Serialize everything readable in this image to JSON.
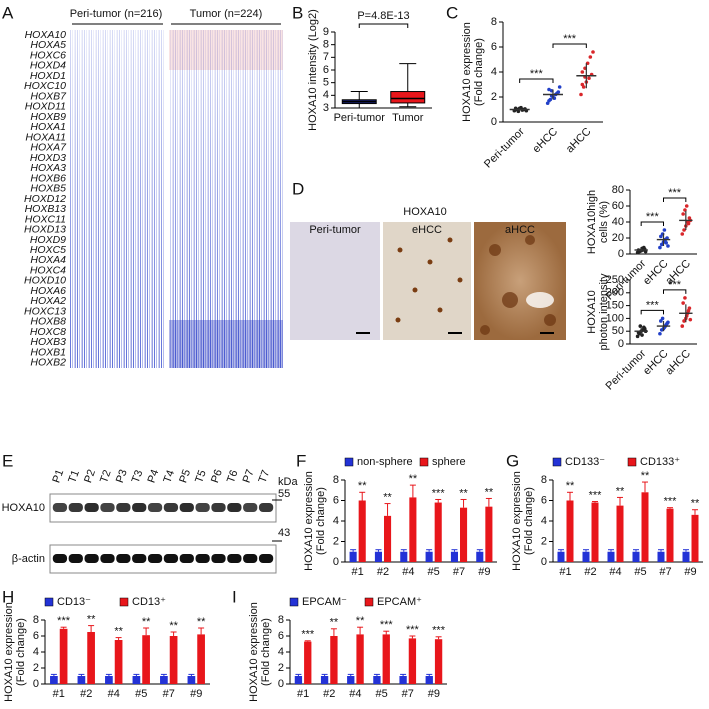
{
  "panel_labels": [
    "A",
    "B",
    "C",
    "D",
    "E",
    "F",
    "G",
    "H",
    "I"
  ],
  "heatmap": {
    "groups": [
      "Peri-tumor (n=216)",
      "Tumor (n=224)"
    ],
    "genes": [
      "HOXA10",
      "HOXA5",
      "HOXC6",
      "HOXD4",
      "HOXD1",
      "HOXC10",
      "HOXB7",
      "HOXD11",
      "HOXB9",
      "HOXA1",
      "HOXA11",
      "HOXA7",
      "HOXD3",
      "HOXA3",
      "HOXB6",
      "HOXB5",
      "HOXD12",
      "HOXB13",
      "HOXC11",
      "HOXD13",
      "HOXD9",
      "HOXC5",
      "HOXA4",
      "HOXC4",
      "HOXD10",
      "HOXA6",
      "HOXA2",
      "HOXC13",
      "HOXB8",
      "HOXC8",
      "HOXB3",
      "HOXB1",
      "HOXB2"
    ]
  },
  "ihc": {
    "title": "HOXA10",
    "panels": [
      "Peri-tumor",
      "eHCC",
      "aHCC"
    ]
  },
  "blot": {
    "lanes": [
      "P1",
      "T1",
      "P2",
      "T2",
      "P3",
      "T3",
      "P4",
      "T4",
      "P5",
      "T5",
      "P6",
      "T6",
      "P7",
      "T7"
    ],
    "unit": "kDa",
    "markers": [
      "55",
      "43"
    ],
    "rows": [
      "HOXA10",
      "β-actin"
    ]
  },
  "chart_data": [
    {
      "type": "box",
      "ylabel": [
        "HOXA10 intensity (Log2)"
      ],
      "annotation": "P=4.8E-13",
      "categories": [
        "Peri-tumor",
        "Tumor"
      ],
      "colors": [
        "#1a237e",
        "#e8161b"
      ],
      "boxes": [
        {
          "min": 3.0,
          "q1": 3.35,
          "median": 3.5,
          "q3": 3.65,
          "max": 4.3
        },
        {
          "min": 3.1,
          "q1": 3.4,
          "median": 3.75,
          "q3": 4.3,
          "max": 6.5
        }
      ],
      "ylim": [
        3,
        9
      ],
      "yticks": [
        3,
        4,
        5,
        6,
        7,
        8,
        9
      ]
    },
    {
      "type": "dot",
      "ylabel": [
        "HOXA10 expression",
        "(Fold change)"
      ],
      "categories": [
        "Peri-tumor",
        "eHCC",
        "aHCC"
      ],
      "colors": [
        "#222222",
        "#2240c8",
        "#d9262a"
      ],
      "points": [
        [
          0.9,
          1.0,
          1.1,
          0.95,
          1.05,
          1.0,
          0.85,
          1.15,
          1.0,
          0.9,
          1.1,
          1.0
        ],
        [
          1.5,
          1.8,
          2.0,
          2.2,
          2.4,
          2.6,
          2.1,
          1.9,
          2.3,
          2.8,
          1.7,
          2.5
        ],
        [
          2.2,
          2.8,
          3.2,
          3.5,
          3.8,
          4.0,
          4.3,
          4.7,
          5.2,
          5.6,
          3.0,
          3.6
        ]
      ],
      "means": [
        1.0,
        2.2,
        3.7
      ],
      "sd": [
        0.1,
        0.4,
        1.0
      ],
      "significance": [
        "***",
        "***"
      ],
      "ylim": [
        0,
        8
      ],
      "yticks": [
        0,
        2,
        4,
        6,
        8
      ]
    },
    {
      "type": "dot",
      "ylabel": [
        "HOXA10high",
        "cells (%)"
      ],
      "categories": [
        "Peri-tumor",
        "eHCC",
        "aHCC"
      ],
      "colors": [
        "#222222",
        "#2240c8",
        "#d9262a"
      ],
      "points": [
        [
          2,
          3,
          4,
          5,
          6,
          5,
          4,
          7,
          8,
          3
        ],
        [
          8,
          12,
          15,
          18,
          20,
          22,
          25,
          30,
          14,
          10
        ],
        [
          25,
          30,
          35,
          40,
          45,
          50,
          55,
          60,
          38,
          42
        ]
      ],
      "means": [
        5,
        18,
        42
      ],
      "sd": [
        2,
        8,
        12
      ],
      "significance": [
        "***",
        "***"
      ],
      "ylim": [
        0,
        80
      ],
      "yticks": [
        0,
        20,
        40,
        60,
        80
      ]
    },
    {
      "type": "dot",
      "ylabel": [
        "HOXA10",
        "photon intensity"
      ],
      "categories": [
        "Peri-tumor",
        "eHCC",
        "aHCC"
      ],
      "colors": [
        "#222222",
        "#2240c8",
        "#d9262a"
      ],
      "points": [
        [
          30,
          40,
          50,
          55,
          60,
          45,
          70,
          35,
          65,
          50
        ],
        [
          40,
          55,
          60,
          70,
          80,
          90,
          100,
          65,
          75,
          85
        ],
        [
          70,
          90,
          100,
          120,
          140,
          160,
          180,
          110,
          130,
          95
        ]
      ],
      "means": [
        50,
        70,
        120
      ],
      "sd": [
        15,
        20,
        35
      ],
      "significance": [
        "***",
        "***"
      ],
      "ylim": [
        0,
        250
      ],
      "yticks": [
        0,
        50,
        100,
        150,
        200,
        250
      ]
    },
    {
      "type": "bar",
      "ylabel": [
        "HOXA10 expression",
        "(Fold change)"
      ],
      "categories": [
        "#1",
        "#2",
        "#4",
        "#5",
        "#7",
        "#9"
      ],
      "series": [
        {
          "name": "non-sphere",
          "color": "#2332d6",
          "values": [
            1,
            1,
            1,
            1,
            1,
            1
          ],
          "errors": [
            0.2,
            0.2,
            0.2,
            0.2,
            0.2,
            0.2
          ]
        },
        {
          "name": "sphere",
          "color": "#e8161b",
          "values": [
            6.0,
            4.5,
            6.3,
            5.8,
            5.3,
            5.4
          ],
          "errors": [
            0.8,
            1.2,
            1.2,
            0.3,
            0.8,
            0.8
          ]
        }
      ],
      "significance": [
        "**",
        "**",
        "**",
        "***",
        "**",
        "**"
      ],
      "ylim": [
        0,
        8
      ],
      "yticks": [
        0,
        2,
        4,
        6,
        8
      ]
    },
    {
      "type": "bar",
      "ylabel": [
        "HOXA10 expression",
        "(Fold change)"
      ],
      "categories": [
        "#1",
        "#2",
        "#4",
        "#5",
        "#7",
        "#9"
      ],
      "series": [
        {
          "name": "CD133⁻",
          "color": "#2332d6",
          "values": [
            1,
            1,
            1,
            1,
            1,
            1
          ],
          "errors": [
            0.2,
            0.2,
            0.2,
            0.2,
            0.2,
            0.2
          ]
        },
        {
          "name": "CD133⁺",
          "color": "#e8161b",
          "values": [
            6.0,
            5.8,
            5.5,
            6.8,
            5.2,
            4.6
          ],
          "errors": [
            0.8,
            0.1,
            0.8,
            1.0,
            0.1,
            0.5
          ]
        }
      ],
      "significance": [
        "**",
        "***",
        "**",
        "**",
        "***",
        "**"
      ],
      "ylim": [
        0,
        8
      ],
      "yticks": [
        0,
        2,
        4,
        6,
        8
      ]
    },
    {
      "type": "bar",
      "ylabel": [
        "HOXA10 expression",
        "(Fold change)"
      ],
      "categories": [
        "#1",
        "#2",
        "#4",
        "#5",
        "#7",
        "#9"
      ],
      "series": [
        {
          "name": "CD13⁻",
          "color": "#2332d6",
          "values": [
            1,
            1,
            1,
            1,
            1,
            1
          ],
          "errors": [
            0.2,
            0.2,
            0.2,
            0.2,
            0.2,
            0.2
          ]
        },
        {
          "name": "CD13⁺",
          "color": "#e8161b",
          "values": [
            6.9,
            6.5,
            5.5,
            6.1,
            6.0,
            6.2
          ],
          "errors": [
            0.2,
            0.8,
            0.3,
            0.9,
            0.5,
            0.8
          ]
        }
      ],
      "significance": [
        "***",
        "**",
        "**",
        "**",
        "**",
        "**"
      ],
      "ylim": [
        0,
        8
      ],
      "yticks": [
        0,
        2,
        4,
        6,
        8
      ]
    },
    {
      "type": "bar",
      "ylabel": [
        "HOXA10 expression",
        "(Fold change)"
      ],
      "categories": [
        "#1",
        "#2",
        "#4",
        "#5",
        "#7",
        "#9"
      ],
      "series": [
        {
          "name": "EPCAM⁻",
          "color": "#2332d6",
          "values": [
            1,
            1,
            1,
            1,
            1,
            1
          ],
          "errors": [
            0.2,
            0.2,
            0.2,
            0.2,
            0.2,
            0.2
          ]
        },
        {
          "name": "EPCAM⁺",
          "color": "#e8161b",
          "values": [
            5.3,
            6.0,
            6.2,
            6.2,
            5.7,
            5.6
          ],
          "errors": [
            0.1,
            0.9,
            0.9,
            0.4,
            0.3,
            0.3
          ]
        }
      ],
      "significance": [
        "***",
        "**",
        "**",
        "***",
        "***",
        "***"
      ],
      "ylim": [
        0,
        8
      ],
      "yticks": [
        0,
        2,
        4,
        6,
        8
      ]
    }
  ]
}
